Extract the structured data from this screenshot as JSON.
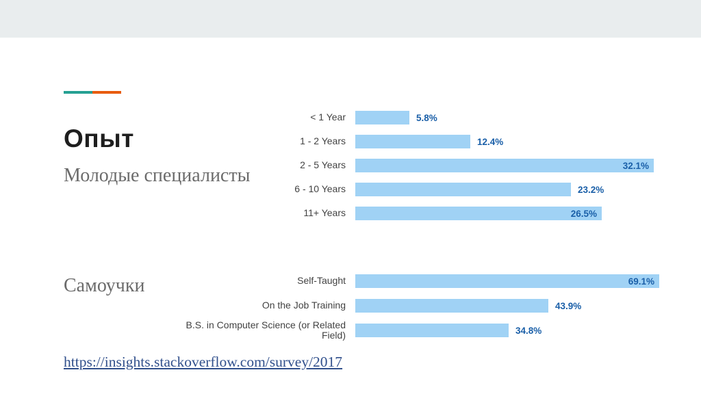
{
  "slide": {
    "title": "Опыт",
    "section1_label": "Молодые специалисты",
    "section2_label": "Самоучки",
    "source_link": "https://insights.stackoverflow.com/survey/2017"
  },
  "theme": {
    "accent_teal": "#26a093",
    "accent_orange": "#e85c0c",
    "bar_blue": "#a0d2f5",
    "value_text_blue": "#1a5fa8",
    "top_band_gray": "#e9edee",
    "link_blue": "#31508c"
  },
  "chart_data": [
    {
      "type": "bar",
      "orientation": "horizontal",
      "title": "",
      "categories": [
        "< 1 Year",
        "1 - 2 Years",
        "2 - 5 Years",
        "6 - 10 Years",
        "11+ Years"
      ],
      "values": [
        5.8,
        12.4,
        32.1,
        23.2,
        26.5
      ],
      "value_labels": [
        "5.8%",
        "12.4%",
        "32.1%",
        "23.2%",
        "26.5%"
      ],
      "label_positions": [
        "outside",
        "outside",
        "inside",
        "outside",
        "inside"
      ],
      "axis_max": 32.1,
      "grid": false,
      "legend": "none"
    },
    {
      "type": "bar",
      "orientation": "horizontal",
      "title": "",
      "categories": [
        "Self-Taught",
        "On the Job Training",
        "B.S. in Computer Science (or Related Field)"
      ],
      "values": [
        69.1,
        43.9,
        34.8
      ],
      "value_labels": [
        "69.1%",
        "43.9%",
        "34.8%"
      ],
      "label_positions": [
        "inside",
        "outside",
        "outside"
      ],
      "axis_max": 69.1,
      "grid": false,
      "legend": "none"
    }
  ]
}
